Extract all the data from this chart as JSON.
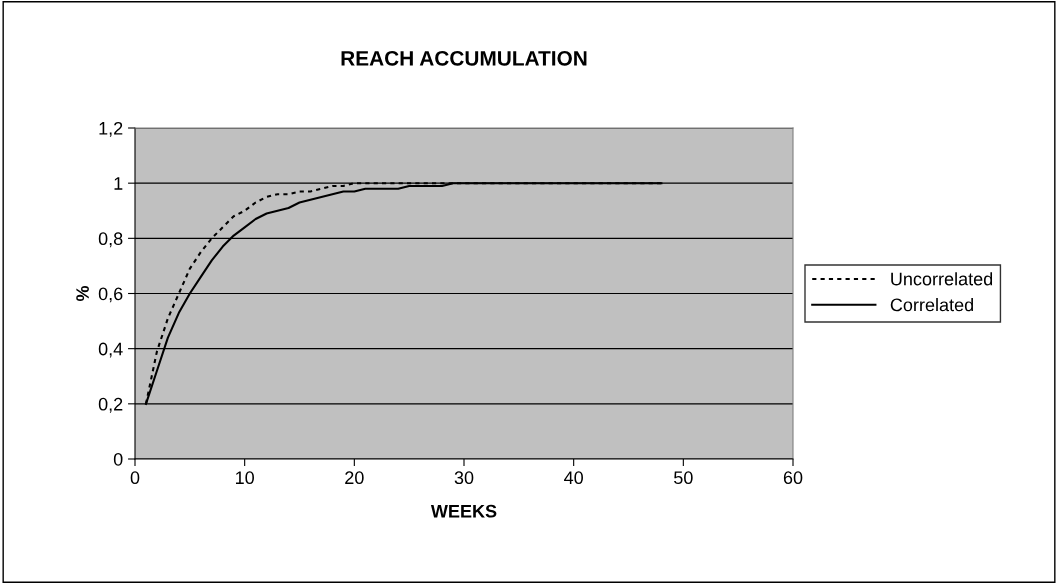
{
  "chart_data": {
    "type": "line",
    "title": "REACH ACCUMULATION",
    "xlabel": "WEEKS",
    "ylabel": "%",
    "x": [
      1,
      2,
      3,
      4,
      5,
      6,
      7,
      8,
      9,
      10,
      11,
      12,
      13,
      14,
      15,
      16,
      17,
      18,
      19,
      20,
      21,
      22,
      23,
      24,
      25,
      26,
      27,
      28,
      29,
      30,
      31,
      32,
      33,
      34,
      35,
      36,
      37,
      38,
      39,
      40,
      41,
      42,
      43,
      44,
      45,
      46,
      47,
      48
    ],
    "series": [
      {
        "name": "Uncorrelated",
        "color": "#000000",
        "line_style": "dotted",
        "values": [
          0.2,
          0.39,
          0.51,
          0.6,
          0.69,
          0.75,
          0.8,
          0.84,
          0.88,
          0.9,
          0.93,
          0.95,
          0.96,
          0.96,
          0.97,
          0.97,
          0.98,
          0.99,
          0.99,
          1.0,
          1.0,
          1.0,
          1.0,
          1.0,
          1.0,
          1.0,
          1.0,
          1.0,
          1.0,
          1.0,
          1.0,
          1.0,
          1.0,
          1.0,
          1.0,
          1.0,
          1.0,
          1.0,
          1.0,
          1.0,
          1.0,
          1.0,
          1.0,
          1.0,
          1.0,
          1.0,
          1.0,
          1.0
        ]
      },
      {
        "name": "Correlated",
        "color": "#000000",
        "line_style": "solid",
        "values": [
          0.2,
          0.32,
          0.44,
          0.53,
          0.6,
          0.66,
          0.72,
          0.77,
          0.81,
          0.84,
          0.87,
          0.89,
          0.9,
          0.91,
          0.93,
          0.94,
          0.95,
          0.96,
          0.97,
          0.97,
          0.98,
          0.98,
          0.98,
          0.98,
          0.99,
          0.99,
          0.99,
          0.99,
          1.0,
          1.0,
          1.0,
          1.0,
          1.0,
          1.0,
          1.0,
          1.0,
          1.0,
          1.0,
          1.0,
          1.0,
          1.0,
          1.0,
          1.0,
          1.0,
          1.0,
          1.0,
          1.0,
          1.0
        ]
      }
    ],
    "xlim": [
      0,
      60
    ],
    "xticks": [
      0,
      10,
      20,
      30,
      40,
      50,
      60
    ],
    "ylim": [
      0,
      1.2
    ],
    "yticks": [
      0,
      {
        "value": 0.2,
        "label": "0,2"
      },
      {
        "value": 0.4,
        "label": "0,4"
      },
      {
        "value": 0.6,
        "label": "0,6"
      },
      {
        "value": 0.8,
        "label": "0,8"
      },
      1,
      {
        "value": 1.2,
        "label": "1,2"
      }
    ],
    "grid": "y",
    "legend": "right",
    "marker": "none"
  }
}
